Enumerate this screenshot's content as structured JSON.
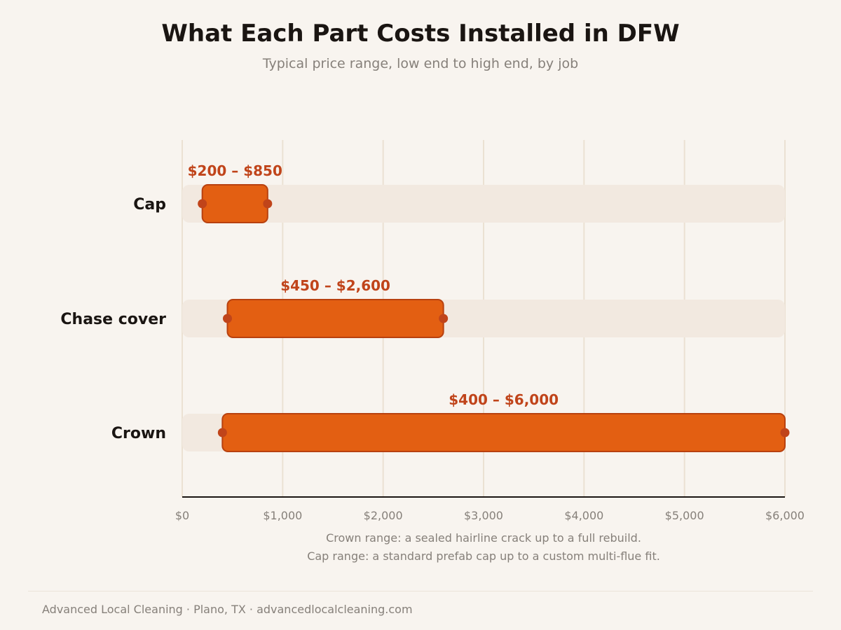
{
  "header": {
    "title": "What Each Part Costs Installed in DFW",
    "subtitle": "Typical price range, low end to high end, by job"
  },
  "chart_data": {
    "type": "range-bar",
    "categories": [
      "Cap",
      "Chase cover",
      "Crown"
    ],
    "series": [
      {
        "low": 200,
        "high": 850,
        "label": "$200 – $850"
      },
      {
        "low": 450,
        "high": 2600,
        "label": "$450 – $2,600"
      },
      {
        "low": 400,
        "high": 6000,
        "label": "$400 – $6,000"
      }
    ],
    "xlim": [
      0,
      6000
    ],
    "xticks": [
      0,
      1000,
      2000,
      3000,
      4000,
      5000,
      6000
    ],
    "xtick_labels": [
      "$0",
      "$1,000",
      "$2,000",
      "$3,000",
      "$4,000",
      "$5,000",
      "$6,000"
    ],
    "grid": "vertical",
    "colors": {
      "bar_fill": "#e35f12",
      "bar_stroke": "#b8410f",
      "endpoint": "#c0441a",
      "label": "#c0441a",
      "track": "#f2e9e0",
      "grid": "#ebe1d3",
      "axis": "#1a1512",
      "category": "#1a1512",
      "tick": "#86807a"
    }
  },
  "notes": {
    "line1": "Crown range: a sealed hairline crack up to a full rebuild.",
    "line2": "Cap range: a standard prefab cap up to a custom multi-flue fit."
  },
  "footer": {
    "text": "Advanced Local Cleaning · Plano, TX · advancedlocalcleaning.com"
  }
}
